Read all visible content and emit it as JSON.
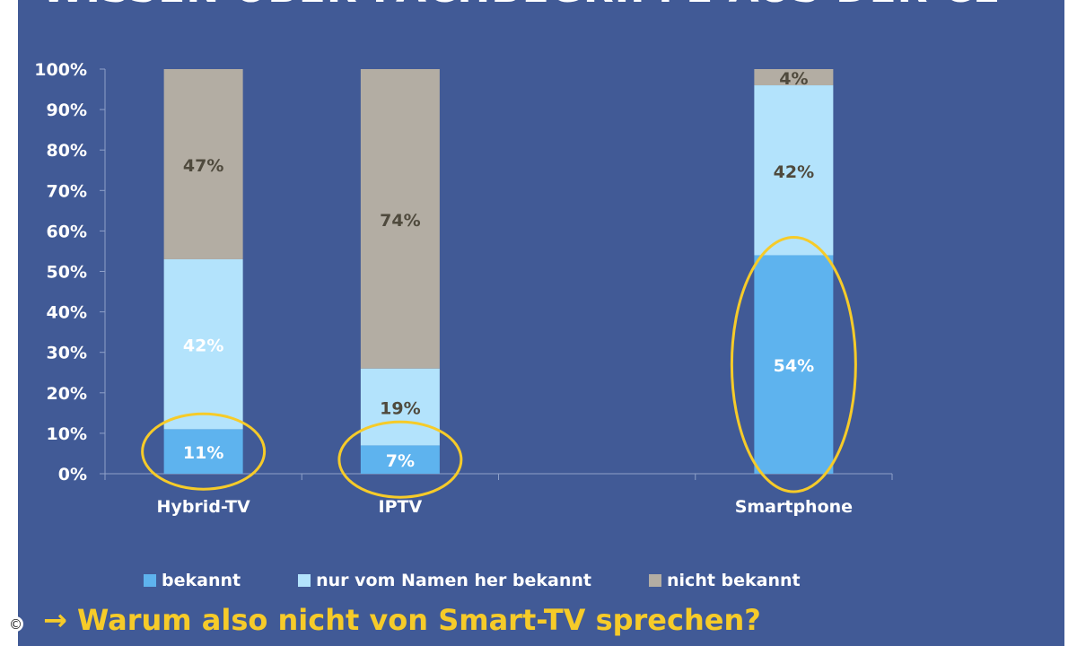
{
  "page": {
    "title": "WISSEN ÜBER FACHBEGRIFFE AUS DER CE",
    "conclusion": "Warum also nicht von Smart-TV sprechen?",
    "conclusion_arrow": "→",
    "copyright_symbol": "©"
  },
  "colors": {
    "background": "#415a96",
    "bekannt": "#5eb3ee",
    "nur_vom_namen": "#b3e3fc",
    "nicht_bekannt": "#b3ada3",
    "highlight": "#f6cb29",
    "label_light": "#ffffff",
    "label_dark": "#4f4a3d"
  },
  "chart_data": {
    "type": "bar",
    "stacked": true,
    "categories": [
      "Hybrid-TV",
      "IPTV",
      "",
      "Smartphone"
    ],
    "series": [
      {
        "name": "bekannt",
        "color": "#5eb3ee",
        "values": [
          11,
          7,
          null,
          54
        ],
        "labels": [
          "11%",
          "7%",
          "",
          "54%"
        ]
      },
      {
        "name": "nur vom Namen her bekannt",
        "color": "#b3e3fc",
        "values": [
          42,
          19,
          null,
          42
        ],
        "labels": [
          "42%",
          "19%",
          "",
          "42%"
        ]
      },
      {
        "name": "nicht bekannt",
        "color": "#b3ada3",
        "values": [
          47,
          74,
          null,
          4
        ],
        "labels": [
          "47%",
          "74%",
          "",
          "4%"
        ]
      }
    ],
    "yticks": [
      "0%",
      "10%",
      "20%",
      "30%",
      "40%",
      "50%",
      "60%",
      "70%",
      "80%",
      "90%",
      "100%"
    ],
    "ylim": [
      0,
      100
    ],
    "legend_position": "bottom",
    "highlighted": [
      {
        "category": "Hybrid-TV",
        "series": "bekannt"
      },
      {
        "category": "IPTV",
        "series": "bekannt"
      },
      {
        "category": "Smartphone",
        "series": "bekannt"
      }
    ]
  }
}
